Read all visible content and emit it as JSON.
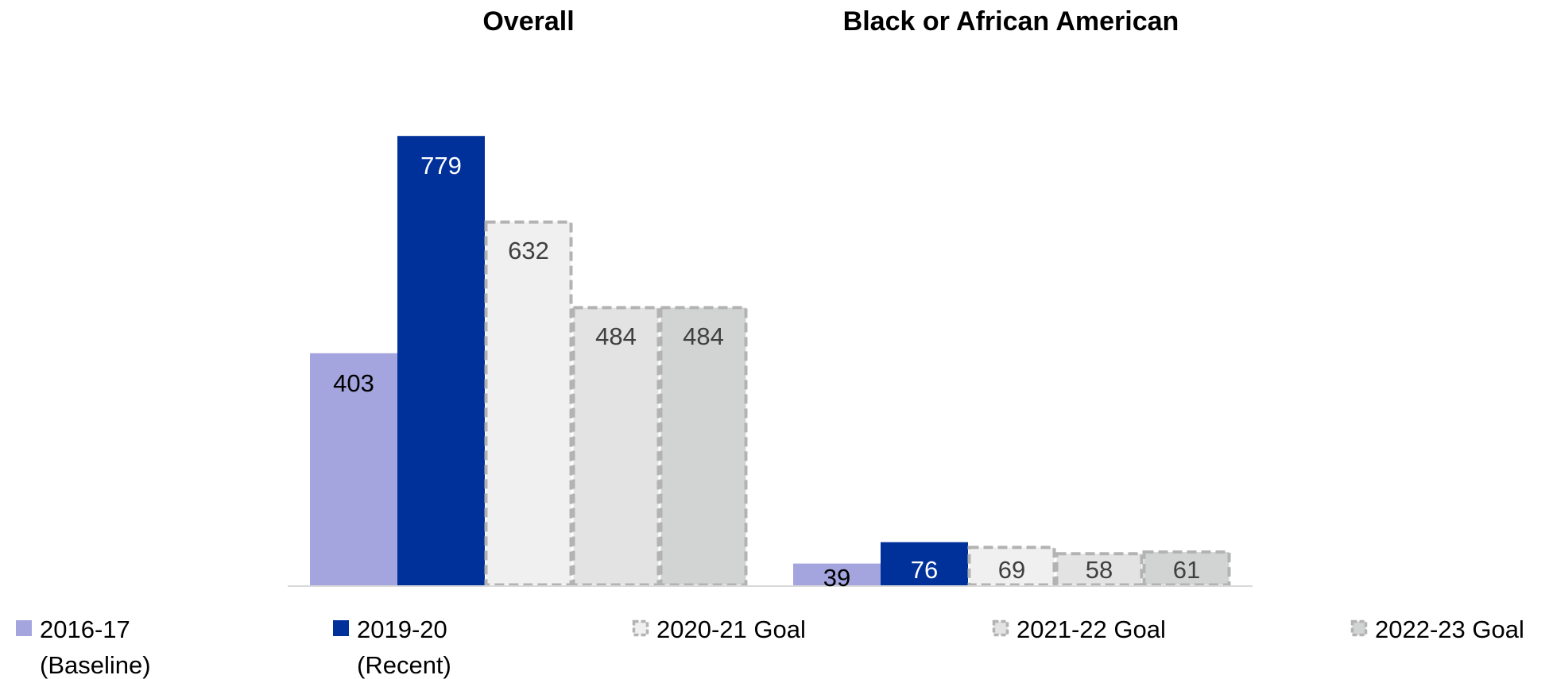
{
  "chart_data": {
    "type": "bar",
    "categories": [
      "Overall",
      "Black or African American"
    ],
    "series": [
      {
        "name": "2016-17 (Baseline)",
        "legend_lines": [
          "2016-17",
          "(Baseline)"
        ],
        "values": [
          403,
          39
        ],
        "color": "#a4a4de",
        "style": "solid"
      },
      {
        "name": "2019-20 (Recent)",
        "legend_lines": [
          "2019-20",
          "(Recent)"
        ],
        "values": [
          779,
          76
        ],
        "color": "#00309a",
        "style": "solid"
      },
      {
        "name": "2020-21 Goal",
        "legend_lines": [
          "2020-21 Goal"
        ],
        "values": [
          632,
          69
        ],
        "color": "#f0f0f0",
        "style": "dashed"
      },
      {
        "name": "2021-22 Goal",
        "legend_lines": [
          "2021-22 Goal"
        ],
        "values": [
          484,
          58
        ],
        "color": "#e3e3e3",
        "style": "dashed"
      },
      {
        "name": "2022-23 Goal",
        "legend_lines": [
          "2022-23 Goal"
        ],
        "values": [
          484,
          61
        ],
        "color": "#d2d4d4",
        "style": "dashed"
      }
    ],
    "ylim": [
      0,
      800
    ],
    "grid": false,
    "legend_position": "bottom",
    "data_labels": true
  },
  "colors": {
    "dashed_border": "#b3b3b3",
    "axis_line": "#d9d9d9",
    "label_on_dark": "#ffffff",
    "label_on_light": "#000000",
    "label_on_goal": "#404040"
  }
}
